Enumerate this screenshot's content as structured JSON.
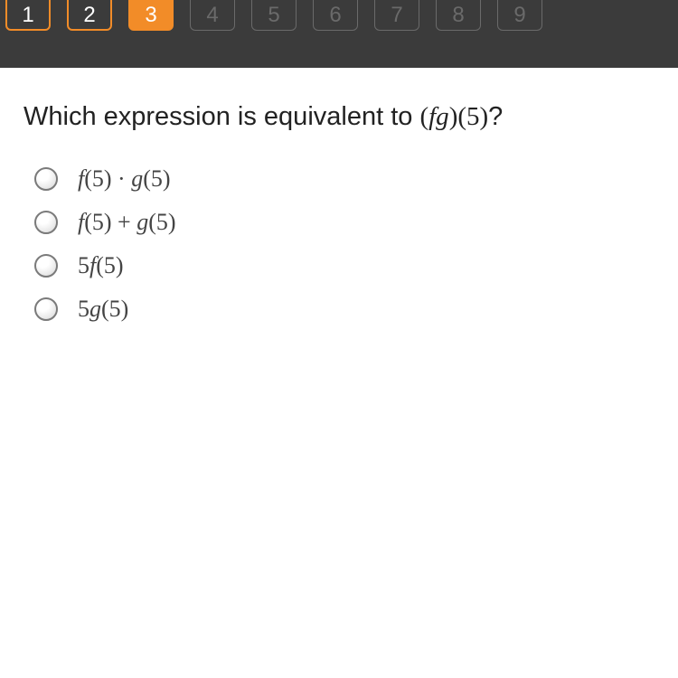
{
  "colors": {
    "nav_bg": "#3b3b3b",
    "completed_border": "#f28c28",
    "completed_text": "#ffffff",
    "current_bg": "#f28c28",
    "current_text": "#ffffff",
    "upcoming_border": "#6a6a6a",
    "upcoming_text": "#6a6a6a"
  },
  "nav": {
    "items": [
      {
        "label": "1",
        "state": "completed"
      },
      {
        "label": "2",
        "state": "completed"
      },
      {
        "label": "3",
        "state": "current"
      },
      {
        "label": "4",
        "state": "upcoming"
      },
      {
        "label": "5",
        "state": "upcoming"
      },
      {
        "label": "6",
        "state": "upcoming"
      },
      {
        "label": "7",
        "state": "upcoming"
      },
      {
        "label": "8",
        "state": "upcoming"
      },
      {
        "label": "9",
        "state": "upcoming"
      }
    ]
  },
  "question": {
    "prefix": "Which expression is equivalent to ",
    "math_html": "(<span class='ital'>fg</span>)(5)",
    "suffix": "?"
  },
  "options": [
    {
      "math_html": "<span class='ital'>f</span>(5) · <span class='ital'>g</span>(5)"
    },
    {
      "math_html": "<span class='ital'>f</span>(5) + <span class='ital'>g</span>(5)"
    },
    {
      "math_html": "5<span class='ital'>f</span>(5)"
    },
    {
      "math_html": "5<span class='ital'>g</span>(5)"
    }
  ]
}
